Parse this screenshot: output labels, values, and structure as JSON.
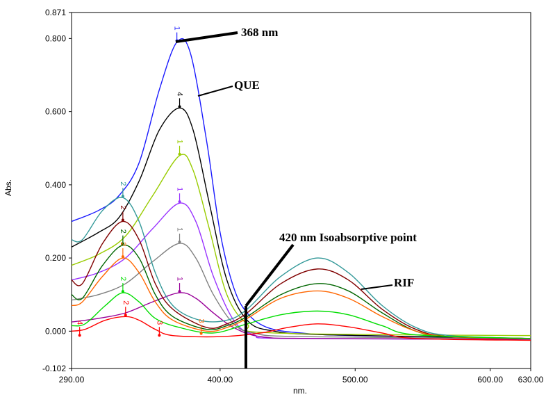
{
  "chart_data": {
    "type": "line",
    "title": "",
    "xlabel": "nm.",
    "ylabel": "Abs.",
    "xlim": [
      290,
      630
    ],
    "ylim": [
      -0.102,
      0.871
    ],
    "xticks": [
      "290.00",
      "400.00",
      "500.00",
      "600.00",
      "630.00"
    ],
    "xtick_values": [
      290,
      400,
      500,
      600,
      630
    ],
    "yticks": [
      "0.871",
      "0.800",
      "0.600",
      "0.400",
      "0.200",
      "0.000",
      "-0.102"
    ],
    "ytick_values": [
      0.871,
      0.8,
      0.6,
      0.4,
      0.2,
      0.0,
      -0.102
    ],
    "grid": false,
    "annotations": [
      {
        "text": "368 nm",
        "nm": 368,
        "abs": 0.79
      },
      {
        "text": "QUE",
        "nm": 375,
        "abs": 0.65
      },
      {
        "text": "420 nm Isoabsorptive point",
        "nm": 420,
        "abs": 0.06
      },
      {
        "text": "RIF",
        "nm": 495,
        "abs": 0.12
      }
    ],
    "series": [
      {
        "name": "blue",
        "color": "#1a1aff",
        "points": [
          [
            290,
            0.3
          ],
          [
            310,
            0.33
          ],
          [
            325,
            0.37
          ],
          [
            340,
            0.46
          ],
          [
            355,
            0.66
          ],
          [
            368,
            0.79
          ],
          [
            378,
            0.76
          ],
          [
            390,
            0.52
          ],
          [
            400,
            0.27
          ],
          [
            410,
            0.12
          ],
          [
            420,
            0.05
          ],
          [
            435,
            0.01
          ],
          [
            460,
            -0.005
          ],
          [
            500,
            -0.012
          ],
          [
            630,
            -0.02
          ]
        ]
      },
      {
        "name": "black",
        "color": "#000000",
        "points": [
          [
            290,
            0.23
          ],
          [
            310,
            0.27
          ],
          [
            325,
            0.31
          ],
          [
            340,
            0.41
          ],
          [
            355,
            0.55
          ],
          [
            370,
            0.61
          ],
          [
            380,
            0.55
          ],
          [
            392,
            0.35
          ],
          [
            405,
            0.14
          ],
          [
            420,
            0.03
          ],
          [
            440,
            0.0
          ],
          [
            480,
            -0.01
          ],
          [
            630,
            -0.02
          ]
        ]
      },
      {
        "name": "yellow-green",
        "color": "#99cc00",
        "points": [
          [
            290,
            0.18
          ],
          [
            310,
            0.21
          ],
          [
            330,
            0.26
          ],
          [
            350,
            0.37
          ],
          [
            370,
            0.48
          ],
          [
            380,
            0.44
          ],
          [
            392,
            0.28
          ],
          [
            405,
            0.1
          ],
          [
            420,
            0.02
          ],
          [
            440,
            -0.005
          ],
          [
            630,
            -0.012
          ]
        ]
      },
      {
        "name": "violet",
        "color": "#9933ff",
        "points": [
          [
            290,
            0.14
          ],
          [
            310,
            0.16
          ],
          [
            330,
            0.2
          ],
          [
            350,
            0.28
          ],
          [
            370,
            0.35
          ],
          [
            382,
            0.3
          ],
          [
            395,
            0.15
          ],
          [
            410,
            0.03
          ],
          [
            425,
            -0.01
          ],
          [
            450,
            -0.02
          ],
          [
            630,
            -0.022
          ]
        ]
      },
      {
        "name": "gray",
        "color": "#808080",
        "points": [
          [
            290,
            0.085
          ],
          [
            310,
            0.1
          ],
          [
            330,
            0.13
          ],
          [
            350,
            0.19
          ],
          [
            370,
            0.24
          ],
          [
            382,
            0.2
          ],
          [
            395,
            0.1
          ],
          [
            410,
            0.02
          ],
          [
            425,
            -0.005
          ],
          [
            460,
            -0.015
          ],
          [
            630,
            -0.02
          ]
        ]
      },
      {
        "name": "purple",
        "color": "#990099",
        "points": [
          [
            290,
            0.025
          ],
          [
            310,
            0.035
          ],
          [
            330,
            0.05
          ],
          [
            350,
            0.08
          ],
          [
            370,
            0.105
          ],
          [
            382,
            0.09
          ],
          [
            395,
            0.05
          ],
          [
            410,
            0.01
          ],
          [
            430,
            -0.015
          ],
          [
            470,
            -0.02
          ],
          [
            630,
            -0.022
          ]
        ]
      },
      {
        "name": "teal",
        "color": "#339999",
        "points": [
          [
            290,
            0.25
          ],
          [
            298,
            0.25
          ],
          [
            313,
            0.33
          ],
          [
            328,
            0.365
          ],
          [
            340,
            0.3
          ],
          [
            352,
            0.16
          ],
          [
            365,
            0.07
          ],
          [
            385,
            0.03
          ],
          [
            405,
            0.03
          ],
          [
            420,
            0.06
          ],
          [
            445,
            0.15
          ],
          [
            472,
            0.2
          ],
          [
            495,
            0.16
          ],
          [
            520,
            0.07
          ],
          [
            545,
            0.01
          ],
          [
            570,
            -0.012
          ],
          [
            630,
            -0.02
          ]
        ]
      },
      {
        "name": "maroon",
        "color": "#800000",
        "points": [
          [
            290,
            0.14
          ],
          [
            298,
            0.13
          ],
          [
            313,
            0.24
          ],
          [
            328,
            0.3
          ],
          [
            340,
            0.25
          ],
          [
            352,
            0.13
          ],
          [
            365,
            0.06
          ],
          [
            390,
            0.01
          ],
          [
            405,
            0.02
          ],
          [
            420,
            0.05
          ],
          [
            445,
            0.13
          ],
          [
            472,
            0.17
          ],
          [
            495,
            0.14
          ],
          [
            520,
            0.06
          ],
          [
            545,
            0.005
          ],
          [
            570,
            -0.015
          ],
          [
            630,
            -0.02
          ]
        ]
      },
      {
        "name": "dark-green",
        "color": "#006600",
        "points": [
          [
            290,
            0.1
          ],
          [
            298,
            0.09
          ],
          [
            313,
            0.18
          ],
          [
            328,
            0.235
          ],
          [
            340,
            0.2
          ],
          [
            352,
            0.1
          ],
          [
            365,
            0.04
          ],
          [
            390,
            0.005
          ],
          [
            405,
            0.015
          ],
          [
            420,
            0.04
          ],
          [
            445,
            0.1
          ],
          [
            472,
            0.13
          ],
          [
            495,
            0.11
          ],
          [
            520,
            0.05
          ],
          [
            545,
            0.0
          ],
          [
            570,
            -0.015
          ],
          [
            630,
            -0.02
          ]
        ]
      },
      {
        "name": "orange",
        "color": "#ff6600",
        "points": [
          [
            290,
            0.07
          ],
          [
            298,
            0.08
          ],
          [
            313,
            0.15
          ],
          [
            328,
            0.2
          ],
          [
            340,
            0.16
          ],
          [
            352,
            0.08
          ],
          [
            365,
            0.03
          ],
          [
            390,
            0.0
          ],
          [
            405,
            0.01
          ],
          [
            420,
            0.035
          ],
          [
            445,
            0.09
          ],
          [
            472,
            0.11
          ],
          [
            495,
            0.09
          ],
          [
            520,
            0.04
          ],
          [
            545,
            0.0
          ],
          [
            570,
            -0.015
          ],
          [
            630,
            -0.02
          ]
        ]
      },
      {
        "name": "green",
        "color": "#00dd00",
        "points": [
          [
            290,
            0.015
          ],
          [
            300,
            0.02
          ],
          [
            315,
            0.07
          ],
          [
            328,
            0.105
          ],
          [
            340,
            0.08
          ],
          [
            352,
            0.035
          ],
          [
            370,
            0.01
          ],
          [
            395,
            -0.005
          ],
          [
            420,
            0.02
          ],
          [
            445,
            0.045
          ],
          [
            472,
            0.055
          ],
          [
            495,
            0.045
          ],
          [
            520,
            0.015
          ],
          [
            545,
            -0.01
          ],
          [
            630,
            -0.02
          ]
        ]
      },
      {
        "name": "red",
        "color": "#ff0000",
        "points": [
          [
            290,
            0.0
          ],
          [
            300,
            0.005
          ],
          [
            315,
            0.03
          ],
          [
            330,
            0.04
          ],
          [
            340,
            0.03
          ],
          [
            352,
            0.005
          ],
          [
            365,
            -0.012
          ],
          [
            400,
            -0.015
          ],
          [
            430,
            -0.005
          ],
          [
            450,
            0.01
          ],
          [
            472,
            0.02
          ],
          [
            495,
            0.012
          ],
          [
            520,
            -0.005
          ],
          [
            545,
            -0.02
          ],
          [
            630,
            -0.025
          ]
        ]
      }
    ],
    "markers": [
      {
        "nm": 368,
        "abs": 0.79,
        "label": "1",
        "color": "#1a1aff"
      },
      {
        "nm": 370,
        "abs": 0.61,
        "label": "4",
        "color": "#000000"
      },
      {
        "nm": 370,
        "abs": 0.48,
        "label": "1",
        "color": "#99cc00"
      },
      {
        "nm": 370,
        "abs": 0.35,
        "label": "1",
        "color": "#9933ff"
      },
      {
        "nm": 370,
        "abs": 0.24,
        "label": "1",
        "color": "#808080"
      },
      {
        "nm": 370,
        "abs": 0.105,
        "label": "1",
        "color": "#990099"
      },
      {
        "nm": 328,
        "abs": 0.365,
        "label": "2",
        "color": "#339999"
      },
      {
        "nm": 328,
        "abs": 0.3,
        "label": "2",
        "color": "#800000"
      },
      {
        "nm": 328,
        "abs": 0.235,
        "label": "2",
        "color": "#006600"
      },
      {
        "nm": 328,
        "abs": 0.2,
        "label": "2",
        "color": "#ff6600"
      },
      {
        "nm": 328,
        "abs": 0.105,
        "label": "2",
        "color": "#00dd00"
      },
      {
        "nm": 330,
        "abs": 0.04,
        "label": "2",
        "color": "#ff0000"
      },
      {
        "nm": 355,
        "abs": -0.015,
        "label": "3",
        "color": "#ff0000"
      },
      {
        "nm": 296,
        "abs": -0.015,
        "label": "4",
        "color": "#ff0000"
      },
      {
        "nm": 386,
        "abs": -0.01,
        "label": "3",
        "color": "#ff6600"
      }
    ]
  }
}
